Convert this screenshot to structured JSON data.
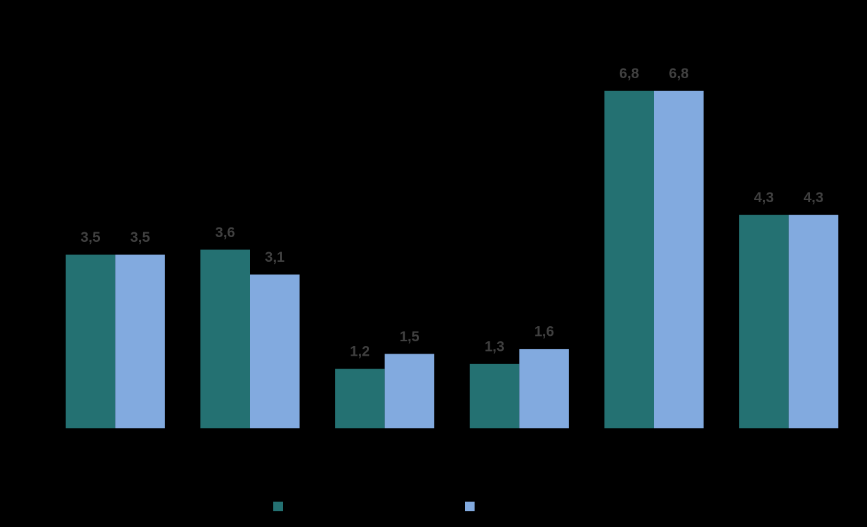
{
  "chart_data": {
    "type": "bar",
    "categories": [
      null,
      null,
      null,
      null,
      null,
      null
    ],
    "series": [
      {
        "color": "#247172",
        "values": [
          3.5,
          3.6,
          1.2,
          1.3,
          6.8,
          4.3
        ],
        "value_labels": [
          "3,5",
          "3,6",
          "1,2",
          "1,3",
          "6,8",
          "4,3"
        ]
      },
      {
        "color": "#82aadf",
        "values": [
          3.5,
          3.1,
          1.5,
          1.6,
          6.8,
          4.3
        ],
        "value_labels": [
          "3,5",
          "3,1",
          "1,5",
          "1,6",
          "6,8",
          "4,3"
        ]
      }
    ],
    "ylim": [
      0,
      7.5
    ],
    "grid": false
  }
}
